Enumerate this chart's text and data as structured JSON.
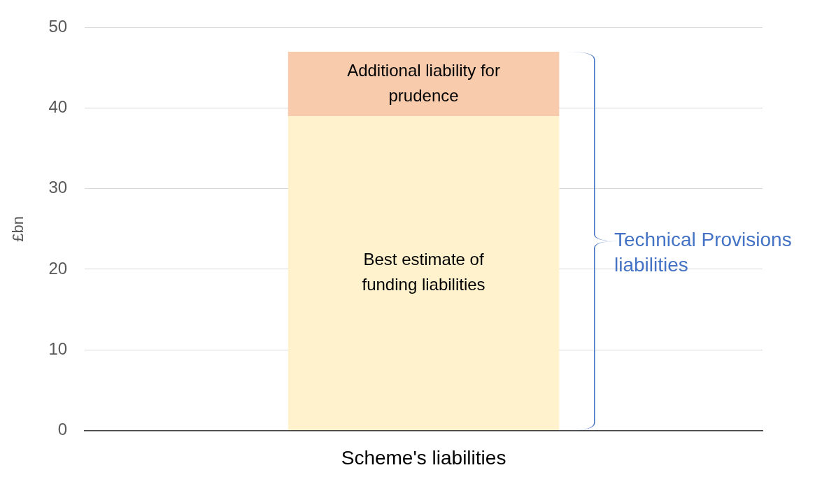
{
  "chart_data": {
    "type": "bar",
    "stacked": true,
    "ylabel": "£bn",
    "categories": [
      "Scheme's liabilities"
    ],
    "series": [
      {
        "name": "Best estimate of funding liabilities",
        "color": "#fff2cc",
        "values": [
          39
        ]
      },
      {
        "name": "Additional liability for prudence",
        "color": "#f8cbad",
        "values": [
          8
        ]
      }
    ],
    "ylim": [
      0,
      50
    ],
    "yticks": [
      0,
      10,
      20,
      30,
      40,
      50
    ],
    "grid": "y",
    "legend": false,
    "annotations": [
      "Technical Provisions liabilities"
    ]
  }
}
